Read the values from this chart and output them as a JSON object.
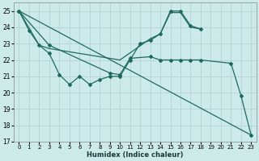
{
  "xlabel": "Humidex (Indice chaleur)",
  "bg_color": "#cceae8",
  "line_color": "#1e6b5e",
  "xlim": [
    -0.5,
    23.5
  ],
  "ylim": [
    17,
    25.5
  ],
  "yticks": [
    17,
    18,
    19,
    20,
    21,
    22,
    23,
    24,
    25
  ],
  "xticks": [
    0,
    1,
    2,
    3,
    4,
    5,
    6,
    7,
    8,
    9,
    10,
    11,
    12,
    13,
    14,
    15,
    16,
    17,
    18,
    19,
    20,
    21,
    22,
    23
  ],
  "line1_x": [
    0,
    1,
    2,
    3,
    4,
    5,
    6,
    7,
    8,
    9,
    10,
    11,
    12,
    13,
    14,
    15,
    16,
    17,
    18
  ],
  "line1_y": [
    25.0,
    23.8,
    22.9,
    22.4,
    21.1,
    20.5,
    21.0,
    20.5,
    20.8,
    21.0,
    21.0,
    22.0,
    23.0,
    23.2,
    23.6,
    25.0,
    25.0,
    24.1,
    23.9
  ],
  "line2_x": [
    0,
    2,
    3,
    10,
    13,
    14,
    15,
    16,
    17,
    18
  ],
  "line2_y": [
    25.0,
    22.9,
    22.7,
    22.0,
    23.3,
    23.6,
    24.9,
    24.9,
    24.0,
    23.9
  ],
  "line3_x": [
    0,
    3,
    9,
    10,
    11,
    13,
    14,
    15,
    16,
    17,
    18,
    21,
    22,
    23
  ],
  "line3_y": [
    25.0,
    22.9,
    21.2,
    21.1,
    22.1,
    22.2,
    22.0,
    22.0,
    22.0,
    22.0,
    22.0,
    21.8,
    19.8,
    17.4
  ],
  "line4_x": [
    0,
    23
  ],
  "line4_y": [
    25.0,
    17.4
  ]
}
